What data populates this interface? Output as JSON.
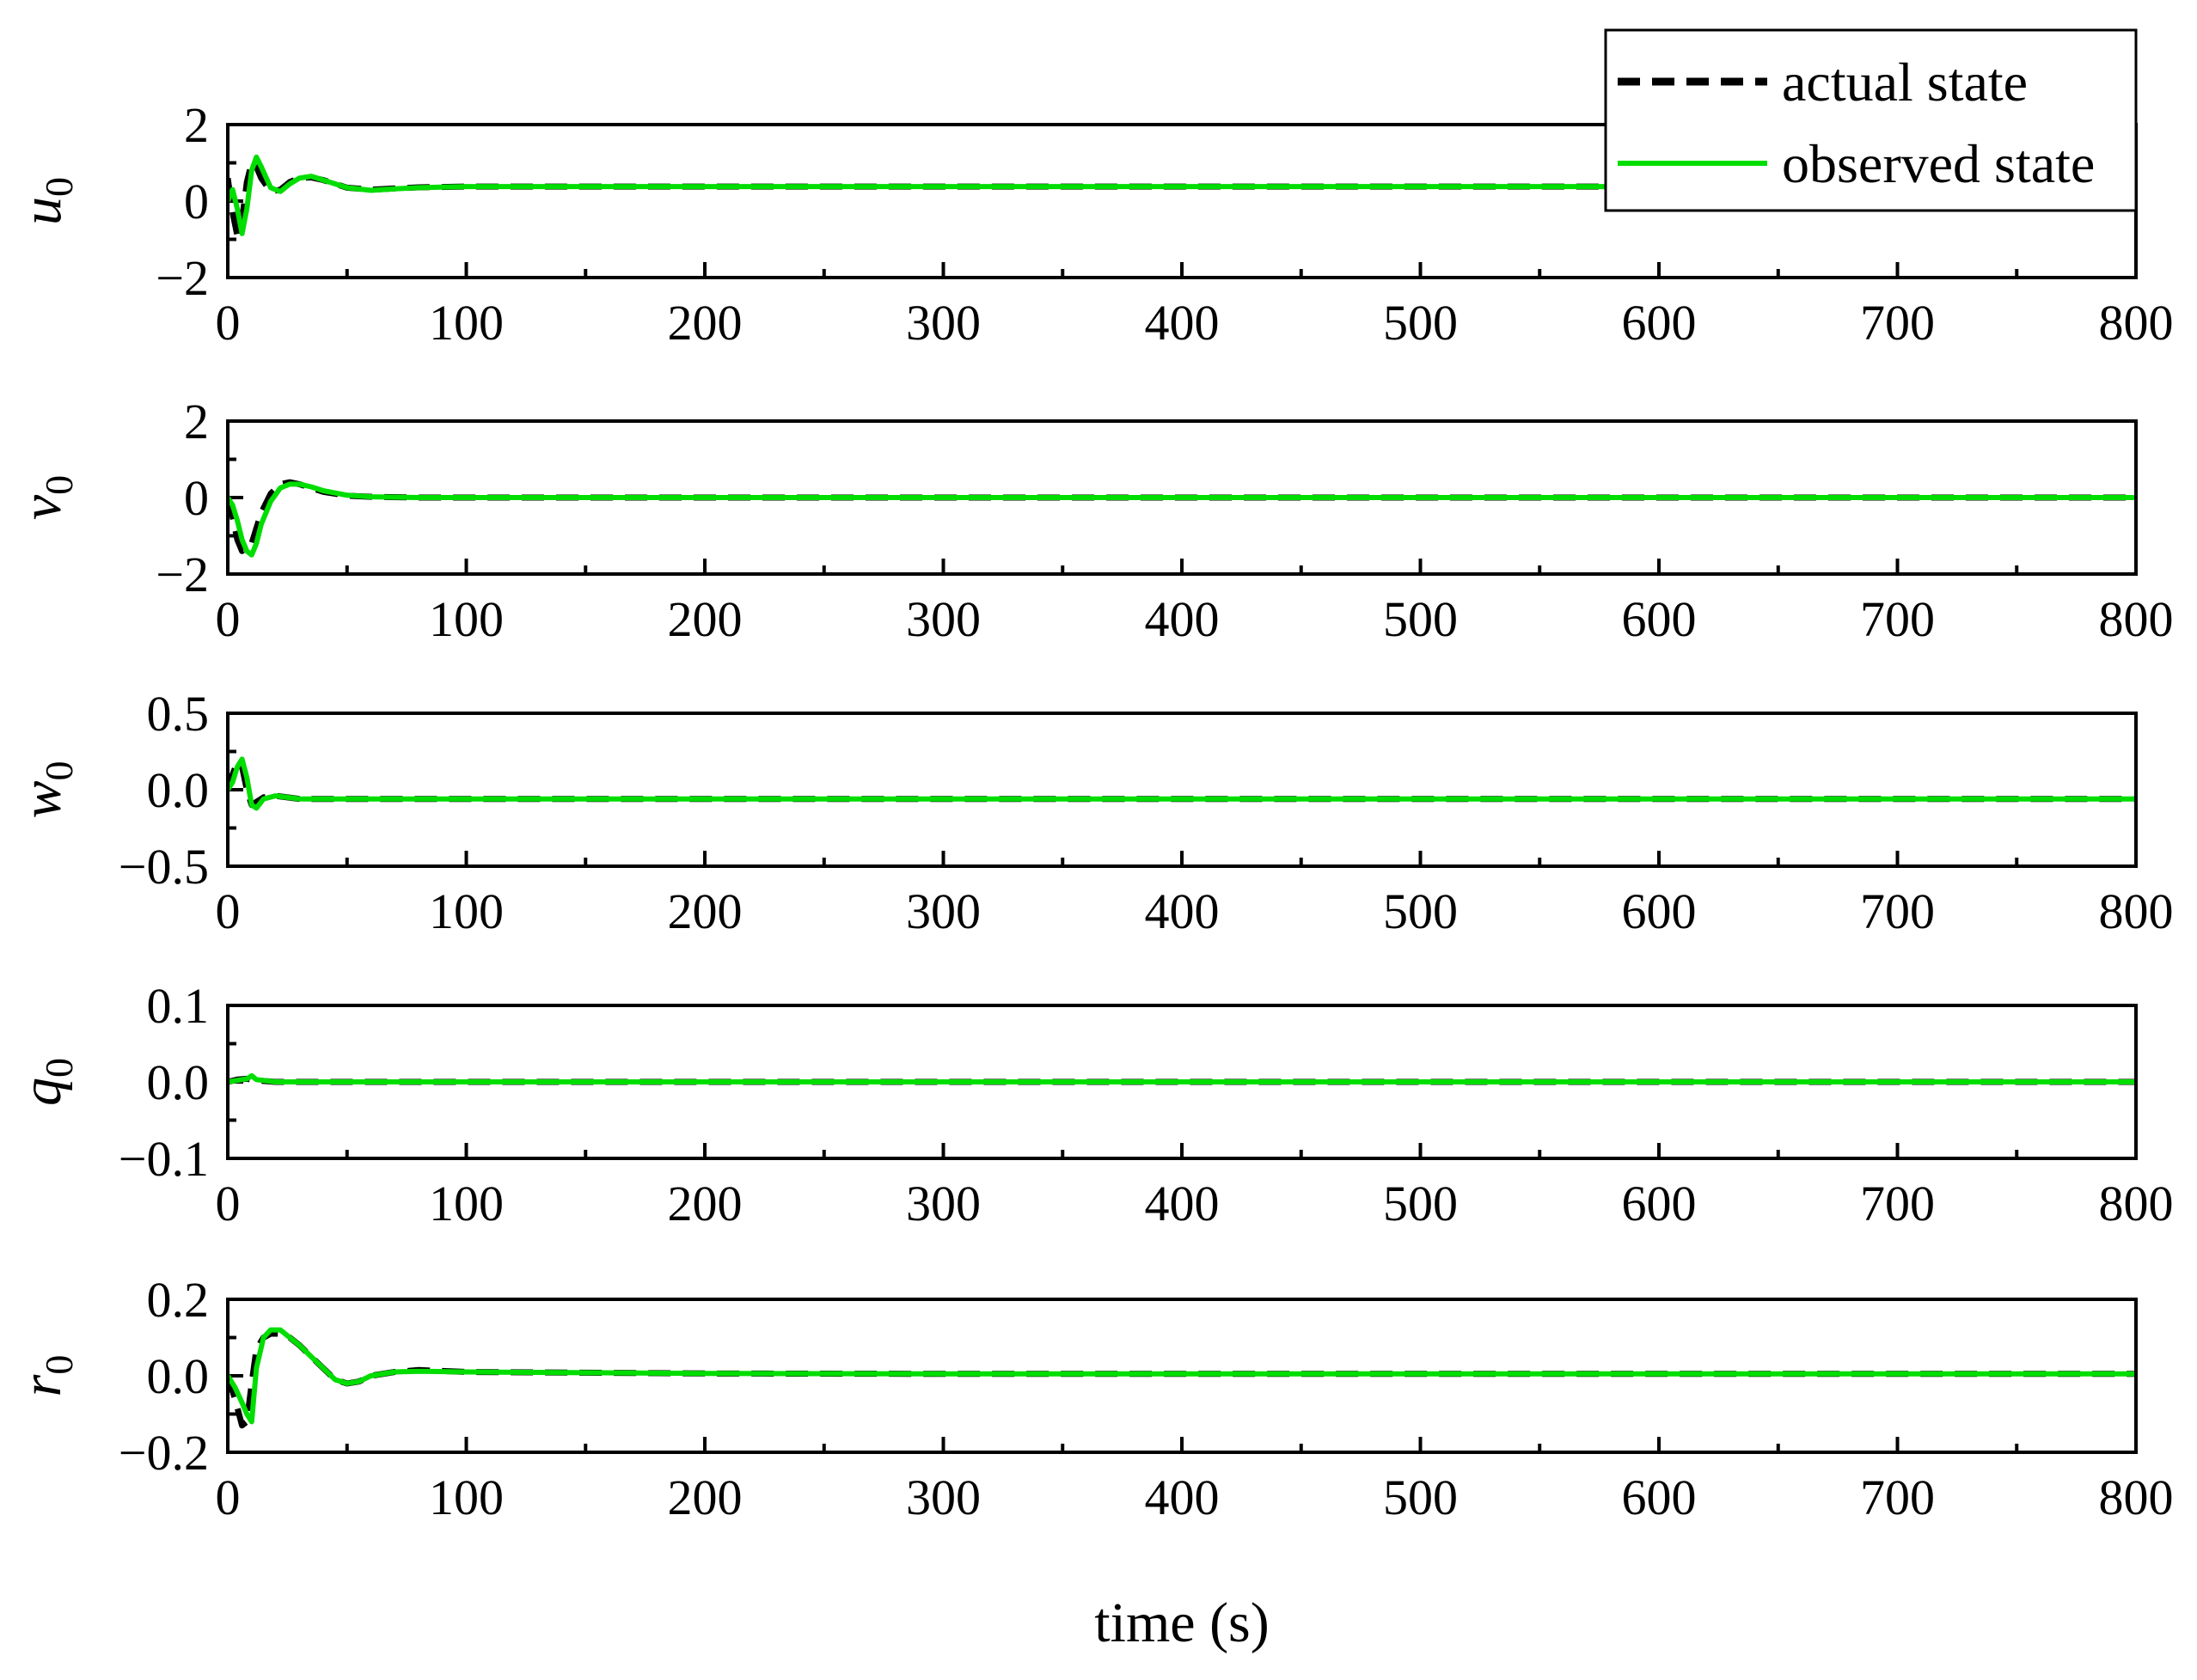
{
  "chart_data": {
    "type": "line",
    "xlabel": "time (s)",
    "legend": {
      "placement": "top-right",
      "entries": [
        {
          "label": "actual state",
          "style": "dashed",
          "color": "#000000"
        },
        {
          "label": "observed state",
          "style": "solid",
          "color": "#00dd00"
        }
      ]
    },
    "x_ticks": [
      "0",
      "100",
      "200",
      "300",
      "400",
      "500",
      "600",
      "700",
      "800"
    ],
    "xlim": [
      0,
      800
    ],
    "panels": [
      {
        "ylabel": "u",
        "ylabel_sub": "0",
        "ylim": [
          -2,
          2
        ],
        "y_ticks": [
          {
            "v": 2,
            "t": "2"
          },
          {
            "v": 0,
            "t": "0"
          },
          {
            "v": -2,
            "t": "−2"
          }
        ],
        "series": [
          {
            "name": "actual state",
            "x": [
              0,
              2,
              4,
              6,
              8,
              10,
              12,
              14,
              18,
              22,
              26,
              30,
              35,
              40,
              50,
              60,
              70,
              80,
              100,
              150,
              200,
              300,
              400,
              500,
              600,
              700,
              800
            ],
            "y": [
              0.6,
              -0.3,
              -0.9,
              -0.5,
              0.5,
              1.0,
              0.9,
              0.6,
              0.25,
              0.3,
              0.5,
              0.6,
              0.62,
              0.55,
              0.35,
              0.3,
              0.33,
              0.36,
              0.38,
              0.38,
              0.38,
              0.38,
              0.38,
              0.38,
              0.38,
              0.38,
              0.38
            ]
          },
          {
            "name": "observed state",
            "x": [
              0,
              2,
              4,
              6,
              8,
              10,
              12,
              14,
              18,
              22,
              26,
              30,
              35,
              40,
              50,
              60,
              70,
              80,
              100,
              150,
              200,
              300,
              400,
              500,
              600,
              700,
              800
            ],
            "y": [
              0.0,
              0.3,
              -0.2,
              -0.85,
              -0.2,
              0.8,
              1.15,
              0.9,
              0.35,
              0.25,
              0.45,
              0.6,
              0.65,
              0.55,
              0.35,
              0.28,
              0.32,
              0.35,
              0.38,
              0.38,
              0.38,
              0.38,
              0.38,
              0.38,
              0.38,
              0.38,
              0.38
            ]
          }
        ]
      },
      {
        "ylabel": "v",
        "ylabel_sub": "0",
        "ylim": [
          -2,
          2
        ],
        "y_ticks": [
          {
            "v": 2,
            "t": "2"
          },
          {
            "v": 0,
            "t": "0"
          },
          {
            "v": -2,
            "t": "−2"
          }
        ],
        "series": [
          {
            "name": "actual state",
            "x": [
              0,
              2,
              4,
              6,
              8,
              10,
              12,
              14,
              18,
              22,
              26,
              30,
              35,
              40,
              50,
              60,
              80,
              100,
              150,
              200,
              300,
              400,
              500,
              600,
              700,
              800
            ],
            "y": [
              0.0,
              -0.5,
              -1.1,
              -1.4,
              -1.3,
              -1.2,
              -0.8,
              -0.4,
              0.1,
              0.35,
              0.4,
              0.35,
              0.25,
              0.15,
              0.05,
              0.02,
              0.0,
              0.0,
              0.0,
              0.0,
              0.0,
              0.0,
              0.0,
              0.0,
              0.0,
              0.0
            ]
          },
          {
            "name": "observed state",
            "x": [
              0,
              2,
              4,
              6,
              8,
              10,
              12,
              14,
              18,
              22,
              26,
              30,
              35,
              40,
              50,
              60,
              80,
              100,
              150,
              200,
              300,
              400,
              500,
              600,
              700,
              800
            ],
            "y": [
              0.0,
              -0.2,
              -0.6,
              -1.1,
              -1.4,
              -1.5,
              -1.2,
              -0.7,
              -0.1,
              0.25,
              0.35,
              0.35,
              0.28,
              0.18,
              0.06,
              0.02,
              0.0,
              0.0,
              0.0,
              0.0,
              0.0,
              0.0,
              0.0,
              0.0,
              0.0,
              0.0
            ]
          }
        ]
      },
      {
        "ylabel": "w",
        "ylabel_sub": "0",
        "ylim": [
          -0.5,
          0.5
        ],
        "y_ticks": [
          {
            "v": 0.5,
            "t": "0.5"
          },
          {
            "v": 0.0,
            "t": "0.0"
          },
          {
            "v": -0.5,
            "t": "−0.5"
          }
        ],
        "series": [
          {
            "name": "actual state",
            "x": [
              0,
              2,
              4,
              6,
              8,
              10,
              12,
              15,
              20,
              25,
              30,
              40,
              60,
              100,
              200,
              300,
              400,
              500,
              600,
              700,
              800
            ],
            "y": [
              0.0,
              0.1,
              0.18,
              0.15,
              0.0,
              -0.1,
              -0.08,
              -0.05,
              -0.04,
              -0.05,
              -0.06,
              -0.06,
              -0.06,
              -0.06,
              -0.06,
              -0.06,
              -0.06,
              -0.06,
              -0.06,
              -0.06,
              -0.06
            ]
          },
          {
            "name": "observed state",
            "x": [
              0,
              2,
              4,
              6,
              8,
              10,
              12,
              15,
              20,
              25,
              30,
              40,
              60,
              100,
              200,
              300,
              400,
              500,
              600,
              700,
              800
            ],
            "y": [
              0.0,
              0.05,
              0.15,
              0.2,
              0.08,
              -0.1,
              -0.12,
              -0.06,
              -0.04,
              -0.05,
              -0.06,
              -0.06,
              -0.06,
              -0.06,
              -0.06,
              -0.06,
              -0.06,
              -0.06,
              -0.06,
              -0.06,
              -0.06
            ]
          }
        ]
      },
      {
        "ylabel": "q",
        "ylabel_sub": "0",
        "ylim": [
          -0.1,
          0.1
        ],
        "y_ticks": [
          {
            "v": 0.1,
            "t": "0.1"
          },
          {
            "v": 0.0,
            "t": "0.0"
          },
          {
            "v": -0.1,
            "t": "−0.1"
          }
        ],
        "series": [
          {
            "name": "actual state",
            "x": [
              0,
              4,
              8,
              12,
              20,
              40,
              100,
              200,
              300,
              400,
              500,
              600,
              700,
              800
            ],
            "y": [
              0.0,
              0.003,
              0.004,
              0.002,
              0.0,
              0.0,
              0.0,
              0.0,
              0.0,
              0.0,
              0.0,
              0.0,
              0.0,
              0.0
            ]
          },
          {
            "name": "observed state",
            "x": [
              0,
              4,
              8,
              10,
              12,
              20,
              40,
              100,
              200,
              300,
              400,
              500,
              600,
              700,
              800
            ],
            "y": [
              0.0,
              0.002,
              0.004,
              0.008,
              0.003,
              0.0,
              0.0,
              0.0,
              0.0,
              0.0,
              0.0,
              0.0,
              0.0,
              0.0,
              0.0
            ]
          }
        ]
      },
      {
        "ylabel": "r",
        "ylabel_sub": "0",
        "ylim": [
          -0.2,
          0.2
        ],
        "y_ticks": [
          {
            "v": 0.2,
            "t": "0.2"
          },
          {
            "v": 0.0,
            "t": "0.0"
          },
          {
            "v": -0.2,
            "t": "−0.2"
          }
        ],
        "series": [
          {
            "name": "actual state",
            "x": [
              0,
              3,
              6,
              8,
              10,
              12,
              15,
              18,
              22,
              26,
              30,
              35,
              40,
              45,
              50,
              55,
              60,
              70,
              80,
              100,
              150,
              200,
              300,
              400,
              500,
              600,
              700,
              800
            ],
            "y": [
              0.0,
              -0.06,
              -0.13,
              -0.12,
              -0.02,
              0.07,
              0.1,
              0.11,
              0.11,
              0.1,
              0.08,
              0.05,
              0.02,
              -0.01,
              -0.02,
              -0.015,
              0.0,
              0.01,
              0.015,
              0.01,
              0.008,
              0.006,
              0.005,
              0.005,
              0.005,
              0.005,
              0.005,
              0.005
            ]
          },
          {
            "name": "observed state",
            "x": [
              0,
              3,
              6,
              8,
              10,
              12,
              15,
              18,
              22,
              26,
              30,
              35,
              40,
              45,
              50,
              55,
              60,
              70,
              80,
              100,
              150,
              200,
              300,
              400,
              500,
              600,
              700,
              800
            ],
            "y": [
              0.0,
              -0.03,
              -0.07,
              -0.1,
              -0.12,
              0.02,
              0.1,
              0.12,
              0.12,
              0.1,
              0.08,
              0.05,
              0.02,
              -0.01,
              -0.02,
              -0.015,
              0.0,
              0.01,
              0.012,
              0.01,
              0.008,
              0.006,
              0.005,
              0.005,
              0.005,
              0.005,
              0.005,
              0.005
            ]
          }
        ]
      }
    ]
  }
}
